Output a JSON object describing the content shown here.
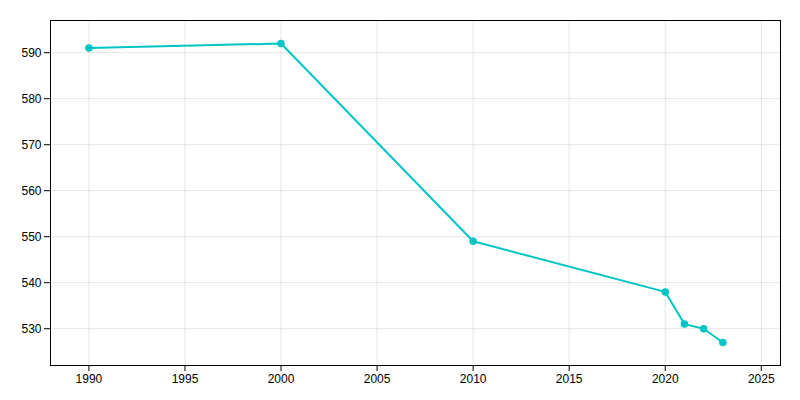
{
  "chart_data": {
    "type": "line",
    "x": [
      1990,
      2000,
      2010,
      2020,
      2021,
      2022,
      2023
    ],
    "values": [
      591,
      592,
      549,
      538,
      531,
      530,
      527
    ],
    "color": "#00C5C5",
    "marker": "circle",
    "xlim": [
      1988,
      2026
    ],
    "ylim": [
      522,
      597
    ],
    "xticks": [
      1990,
      1995,
      2000,
      2005,
      2010,
      2015,
      2020,
      2025
    ],
    "yticks": [
      530,
      540,
      550,
      560,
      570,
      580,
      590
    ],
    "grid": true
  }
}
